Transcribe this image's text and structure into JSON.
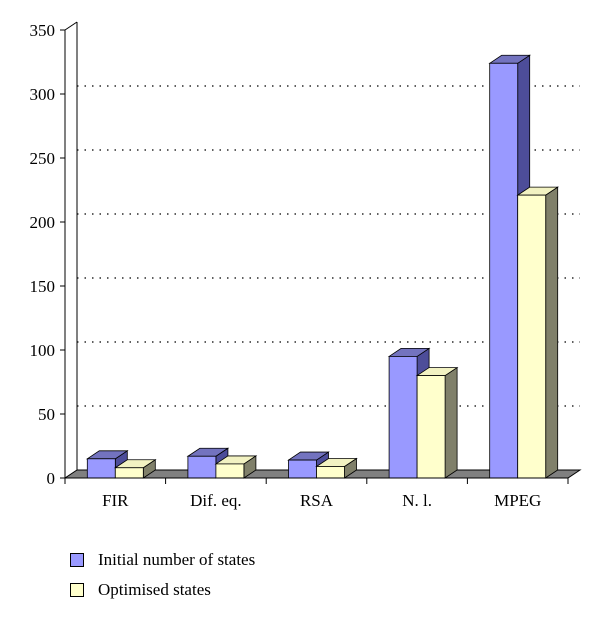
{
  "chart_data": {
    "type": "bar",
    "categories": [
      "FIR",
      "Dif. eq.",
      "RSA",
      "N. l.",
      "MPEG"
    ],
    "series": [
      {
        "name": "Initial number of states",
        "values": [
          15,
          17,
          14,
          95,
          324
        ],
        "color": "#9999ff"
      },
      {
        "name": "Optimised states",
        "values": [
          8,
          11,
          9,
          80,
          221
        ],
        "color": "#ffffcc"
      }
    ],
    "y_ticks": [
      "0",
      "50",
      "100",
      "150",
      "200",
      "250",
      "300",
      "350"
    ],
    "ylim": [
      0,
      350
    ],
    "grid": true,
    "legend_position": "bottom-left",
    "xlabel": "",
    "ylabel": "",
    "title": ""
  }
}
